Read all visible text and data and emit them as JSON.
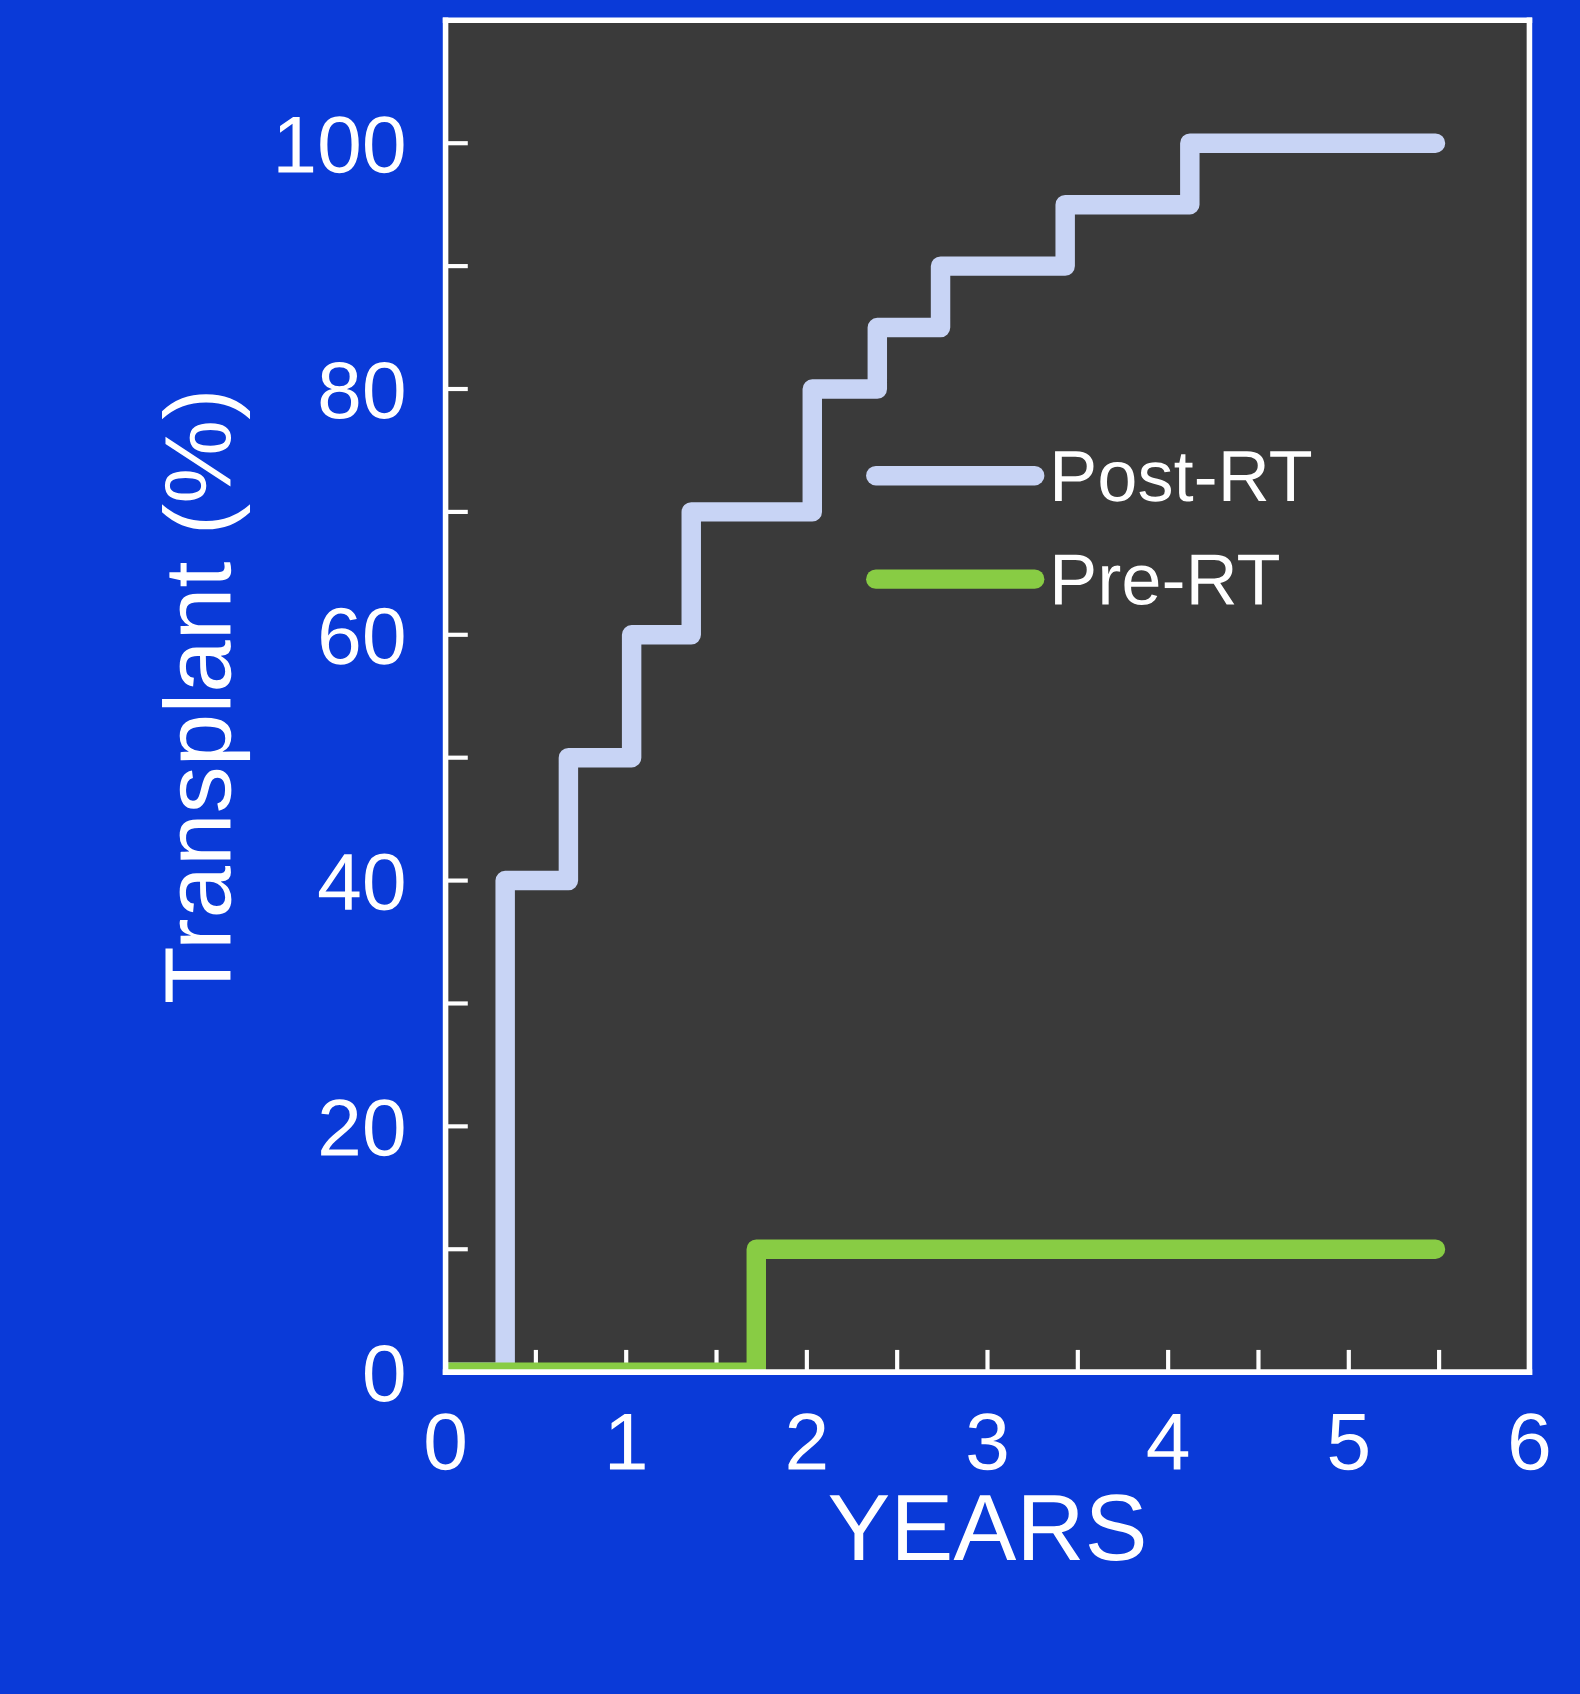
{
  "chart_data": {
    "type": "step",
    "xlabel": "YEARS",
    "ylabel": "Transplant (%)",
    "series": [
      {
        "name": "Post-RT",
        "color": "#c8d4f5",
        "x": [
          0,
          0.33,
          0.68,
          1.03,
          1.36,
          2.03,
          2.39,
          2.74,
          3.43,
          4.12,
          5.48
        ],
        "values": [
          0,
          40,
          50,
          60,
          70,
          80,
          85,
          90,
          95,
          100,
          100
        ]
      },
      {
        "name": "Pre-RT",
        "color": "#88cc44",
        "x": [
          0,
          1.72,
          5.48
        ],
        "values": [
          0,
          10,
          10
        ]
      }
    ],
    "xlim": [
      0,
      6
    ],
    "ylim": [
      0,
      110
    ],
    "xticks": [
      0,
      {
        "value": 0.5,
        "label": null
      },
      1,
      {
        "value": 1.5,
        "label": null
      },
      2,
      {
        "value": 2.5,
        "label": null
      },
      3,
      {
        "value": 3.5,
        "label": null
      },
      4,
      {
        "value": 4.5,
        "label": null
      },
      5,
      {
        "value": 5.5,
        "label": null
      },
      6
    ],
    "yticks": [
      0,
      {
        "value": 10,
        "label": null
      },
      20,
      {
        "value": 30,
        "label": null
      },
      40,
      {
        "value": 50,
        "label": null
      },
      60,
      {
        "value": 70,
        "label": null
      },
      80,
      {
        "value": 90,
        "label": null
      },
      100
    ],
    "grid": false,
    "legend": "right",
    "line_style": "solid",
    "marker": "none"
  }
}
